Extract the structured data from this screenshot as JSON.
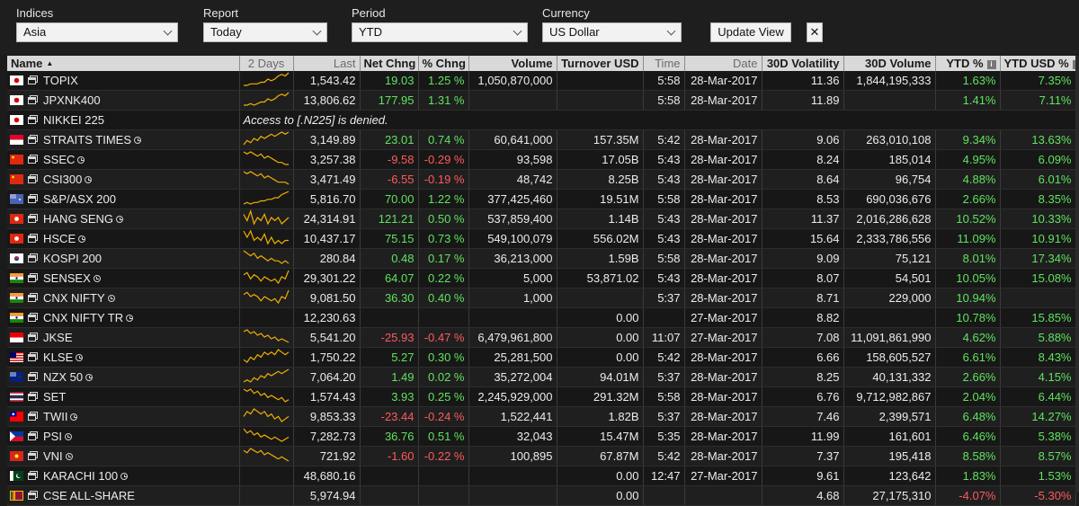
{
  "toolbar": {
    "indices": {
      "label": "Indices",
      "value": "Asia"
    },
    "report": {
      "label": "Report",
      "value": "Today"
    },
    "period": {
      "label": "Period",
      "value": "YTD"
    },
    "currency": {
      "label": "Currency",
      "value": "US Dollar"
    },
    "update_label": "Update View",
    "close_label": "✕"
  },
  "columns": [
    "Name",
    "2 Days",
    "Last",
    "Net Chng",
    "% Chng",
    "Volume",
    "Turnover USD",
    "Time",
    "Date",
    "30D Volatility",
    "30D Volume",
    "YTD %",
    "YTD USD %"
  ],
  "sort_indicator": "▲",
  "info_glyph": "i",
  "colors": {
    "positive": "#5fe35f",
    "negative": "#ff5a5a",
    "spark": "#f0b000"
  },
  "rows": [
    {
      "flag": "jp",
      "name": "TOPIX",
      "clock": false,
      "last": "1,543.42",
      "net": "19.03",
      "pct": "1.25 %",
      "volume": "1,050,870,000",
      "turnover": "",
      "time": "5:58",
      "date": "28-Mar-2017",
      "vol30": "11.36",
      "volume30": "1,844,195,333",
      "ytd": "1.63%",
      "ytdusd": "7.35%",
      "spark": [
        2,
        2,
        3,
        3,
        3,
        4,
        4,
        6,
        5,
        6,
        8,
        9,
        8,
        10
      ]
    },
    {
      "flag": "jp",
      "name": "JPXNK400",
      "clock": false,
      "last": "13,806.62",
      "net": "177.95",
      "pct": "1.31 %",
      "volume": "",
      "turnover": "",
      "time": "5:58",
      "date": "28-Mar-2017",
      "vol30": "11.89",
      "volume30": "",
      "ytd": "1.41%",
      "ytdusd": "7.11%",
      "spark": [
        2,
        2,
        3,
        2,
        3,
        4,
        4,
        6,
        5,
        6,
        8,
        9,
        8,
        10
      ]
    },
    {
      "flag": "jp",
      "name": "NIKKEI 225",
      "clock": false,
      "message": "Access to [.N225] is denied."
    },
    {
      "flag": "sg",
      "name": "STRAITS TIMES",
      "clock": true,
      "last": "3,149.89",
      "net": "23.01",
      "pct": "0.74 %",
      "volume": "60,641,000",
      "turnover": "157.35M",
      "time": "5:42",
      "date": "28-Mar-2017",
      "vol30": "9.06",
      "volume30": "263,010,108",
      "ytd": "9.34%",
      "ytdusd": "13.63%",
      "spark": [
        3,
        5,
        4,
        6,
        5,
        7,
        6,
        7,
        8,
        7,
        8,
        9,
        8,
        9
      ]
    },
    {
      "flag": "cn",
      "name": "SSEC",
      "clock": true,
      "last": "3,257.38",
      "net": "-9.58",
      "pct": "-0.29 %",
      "volume": "93,598",
      "turnover": "17.05B",
      "time": "5:43",
      "date": "28-Mar-2017",
      "vol30": "8.24",
      "volume30": "185,014",
      "ytd": "4.95%",
      "ytdusd": "6.09%",
      "spark": [
        9,
        8,
        9,
        8,
        7,
        8,
        6,
        7,
        6,
        5,
        4,
        4,
        3,
        3
      ]
    },
    {
      "flag": "cn",
      "name": "CSI300",
      "clock": true,
      "last": "3,471.49",
      "net": "-6.55",
      "pct": "-0.19 %",
      "volume": "48,742",
      "turnover": "8.25B",
      "time": "5:43",
      "date": "28-Mar-2017",
      "vol30": "8.64",
      "volume30": "96,754",
      "ytd": "4.88%",
      "ytdusd": "6.01%",
      "spark": [
        9,
        8,
        9,
        8,
        7,
        8,
        6,
        7,
        6,
        5,
        4,
        4,
        4,
        3
      ]
    },
    {
      "flag": "au",
      "name": "S&P/ASX 200",
      "clock": false,
      "last": "5,816.70",
      "net": "70.00",
      "pct": "1.22 %",
      "volume": "377,425,460",
      "turnover": "19.51M",
      "time": "5:58",
      "date": "28-Mar-2017",
      "vol30": "8.53",
      "volume30": "690,036,676",
      "ytd": "2.66%",
      "ytdusd": "8.35%",
      "spark": [
        2,
        3,
        2,
        3,
        3,
        4,
        4,
        5,
        5,
        6,
        6,
        8,
        9,
        10
      ]
    },
    {
      "flag": "hk",
      "name": "HANG SENG",
      "clock": true,
      "last": "24,314.91",
      "net": "121.21",
      "pct": "0.50 %",
      "volume": "537,859,400",
      "turnover": "1.14B",
      "time": "5:43",
      "date": "28-Mar-2017",
      "vol30": "11.37",
      "volume30": "2,016,286,628",
      "ytd": "10.52%",
      "ytdusd": "10.33%",
      "spark": [
        7,
        5,
        8,
        4,
        6,
        5,
        7,
        4,
        6,
        5,
        6,
        4,
        5,
        6
      ]
    },
    {
      "flag": "hk",
      "name": "HSCE",
      "clock": true,
      "last": "10,437.17",
      "net": "75.15",
      "pct": "0.73 %",
      "volume": "549,100,079",
      "turnover": "556.02M",
      "time": "5:43",
      "date": "28-Mar-2017",
      "vol30": "15.64",
      "volume30": "2,333,786,556",
      "ytd": "11.09%",
      "ytdusd": "10.91%",
      "spark": [
        8,
        6,
        8,
        5,
        6,
        5,
        7,
        4,
        6,
        4,
        5,
        4,
        5,
        5
      ]
    },
    {
      "flag": "kr",
      "name": "KOSPI 200",
      "clock": false,
      "last": "280.84",
      "net": "0.48",
      "pct": "0.17 %",
      "volume": "36,213,000",
      "turnover": "1.59B",
      "time": "5:58",
      "date": "28-Mar-2017",
      "vol30": "9.09",
      "volume30": "75,121",
      "ytd": "8.01%",
      "ytdusd": "17.34%",
      "spark": [
        8,
        7,
        6,
        7,
        5,
        6,
        5,
        4,
        5,
        4,
        4,
        3,
        4,
        3
      ]
    },
    {
      "flag": "in",
      "name": "SENSEX",
      "clock": true,
      "last": "29,301.22",
      "net": "64.07",
      "pct": "0.22 %",
      "volume": "5,000",
      "turnover": "53,871.02",
      "time": "5:43",
      "date": "28-Mar-2017",
      "vol30": "8.07",
      "volume30": "54,501",
      "ytd": "10.05%",
      "ytdusd": "15.08%",
      "spark": [
        6,
        7,
        4,
        6,
        5,
        3,
        5,
        4,
        3,
        4,
        2,
        5,
        4,
        8
      ]
    },
    {
      "flag": "in",
      "name": "CNX NIFTY",
      "clock": true,
      "last": "9,081.50",
      "net": "36.30",
      "pct": "0.40 %",
      "volume": "1,000",
      "turnover": "",
      "time": "5:37",
      "date": "28-Mar-2017",
      "vol30": "8.71",
      "volume30": "229,000",
      "ytd": "10.94%",
      "ytdusd": "",
      "spark": [
        6,
        7,
        5,
        6,
        5,
        3,
        5,
        4,
        3,
        4,
        2,
        5,
        4,
        8
      ]
    },
    {
      "flag": "in",
      "name": "CNX NIFTY TR",
      "clock": true,
      "last": "12,230.63",
      "net": "",
      "pct": "",
      "volume": "",
      "turnover": "0.00",
      "time": "",
      "date": "27-Mar-2017",
      "vol30": "8.82",
      "volume30": "",
      "ytd": "10.78%",
      "ytdusd": "15.85%",
      "spark": []
    },
    {
      "flag": "id",
      "name": "JKSE",
      "clock": false,
      "last": "5,541.20",
      "net": "-25.93",
      "pct": "-0.47 %",
      "volume": "6,479,961,800",
      "turnover": "0.00",
      "time": "11:07",
      "date": "27-Mar-2017",
      "vol30": "7.08",
      "volume30": "11,091,861,990",
      "ytd": "4.62%",
      "ytdusd": "5.88%",
      "spark": [
        8,
        9,
        7,
        8,
        6,
        7,
        5,
        6,
        4,
        5,
        3,
        4,
        3,
        2
      ]
    },
    {
      "flag": "my",
      "name": "KLSE",
      "clock": true,
      "last": "1,750.22",
      "net": "5.27",
      "pct": "0.30 %",
      "volume": "25,281,500",
      "turnover": "0.00",
      "time": "5:42",
      "date": "28-Mar-2017",
      "vol30": "6.66",
      "volume30": "158,605,527",
      "ytd": "6.61%",
      "ytdusd": "8.43%",
      "spark": [
        5,
        4,
        6,
        5,
        7,
        6,
        8,
        7,
        8,
        7,
        9,
        8,
        7,
        8
      ]
    },
    {
      "flag": "nz",
      "name": "NZX 50",
      "clock": true,
      "last": "7,064.20",
      "net": "1.49",
      "pct": "0.02 %",
      "volume": "35,272,004",
      "turnover": "94.01M",
      "time": "5:37",
      "date": "28-Mar-2017",
      "vol30": "8.25",
      "volume30": "40,131,332",
      "ytd": "2.66%",
      "ytdusd": "4.15%",
      "spark": [
        3,
        4,
        3,
        5,
        4,
        6,
        5,
        7,
        6,
        7,
        8,
        7,
        8,
        9
      ]
    },
    {
      "flag": "th",
      "name": "SET",
      "clock": false,
      "last": "1,574.43",
      "net": "3.93",
      "pct": "0.25 %",
      "volume": "2,245,929,000",
      "turnover": "291.32M",
      "time": "5:58",
      "date": "28-Mar-2017",
      "vol30": "6.76",
      "volume30": "9,712,982,867",
      "ytd": "2.04%",
      "ytdusd": "6.44%",
      "spark": [
        8,
        7,
        8,
        6,
        7,
        5,
        6,
        4,
        5,
        4,
        3,
        4,
        2,
        3
      ]
    },
    {
      "flag": "tw",
      "name": "TWII",
      "clock": true,
      "last": "9,853.33",
      "net": "-23.44",
      "pct": "-0.24 %",
      "volume": "1,522,441",
      "turnover": "1.82B",
      "time": "5:37",
      "date": "28-Mar-2017",
      "vol30": "7.46",
      "volume30": "2,399,571",
      "ytd": "6.48%",
      "ytdusd": "14.27%",
      "spark": [
        6,
        8,
        7,
        9,
        8,
        7,
        8,
        6,
        7,
        5,
        6,
        4,
        5,
        6
      ]
    },
    {
      "flag": "ph",
      "name": "PSI",
      "clock": true,
      "last": "7,282.73",
      "net": "36.76",
      "pct": "0.51 %",
      "volume": "32,043",
      "turnover": "15.47M",
      "time": "5:35",
      "date": "28-Mar-2017",
      "vol30": "11.99",
      "volume30": "161,601",
      "ytd": "6.46%",
      "ytdusd": "5.38%",
      "spark": [
        8,
        6,
        7,
        5,
        6,
        4,
        5,
        4,
        3,
        4,
        3,
        2,
        3,
        4
      ]
    },
    {
      "flag": "vn",
      "name": "VNI",
      "clock": true,
      "last": "721.92",
      "net": "-1.60",
      "pct": "-0.22 %",
      "volume": "100,895",
      "turnover": "67.87M",
      "time": "5:42",
      "date": "28-Mar-2017",
      "vol30": "7.37",
      "volume30": "195,418",
      "ytd": "8.58%",
      "ytdusd": "8.57%",
      "spark": [
        8,
        7,
        9,
        8,
        7,
        8,
        6,
        7,
        6,
        5,
        4,
        5,
        4,
        3
      ]
    },
    {
      "flag": "pk",
      "name": "KARACHI 100",
      "clock": true,
      "last": "48,680.16",
      "net": "",
      "pct": "",
      "volume": "",
      "turnover": "0.00",
      "time": "12:47",
      "date": "27-Mar-2017",
      "vol30": "9.61",
      "volume30": "123,642",
      "ytd": "1.83%",
      "ytdusd": "1.53%",
      "spark": []
    },
    {
      "flag": "lk",
      "name": "CSE ALL-SHARE",
      "clock": false,
      "last": "5,974.94",
      "net": "",
      "pct": "",
      "volume": "",
      "turnover": "0.00",
      "time": "",
      "date": "",
      "vol30": "4.68",
      "volume30": "27,175,310",
      "ytd": "-4.07%",
      "ytdusd": "-5.30%",
      "spark": []
    }
  ]
}
